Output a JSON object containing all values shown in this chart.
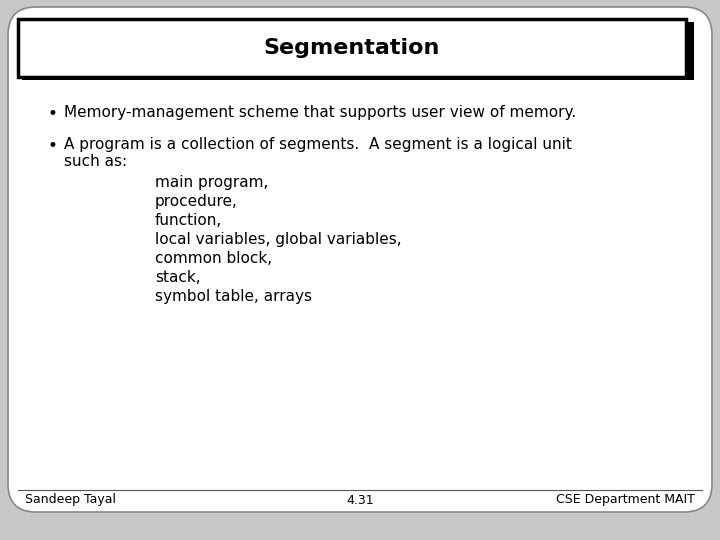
{
  "title": "Segmentation",
  "bg_color": "#c8c8c8",
  "slide_bg": "#ffffff",
  "title_box_color": "#ffffff",
  "title_box_border": "#000000",
  "title_fontsize": 16,
  "title_font_weight": "bold",
  "body_fontsize": 11,
  "footer_fontsize": 9,
  "bullet1": "Memory-management scheme that supports user view of memory.",
  "bullet2_line1": "A program is a collection of segments.  A segment is a logical unit",
  "bullet2_line2": "such as:",
  "sub_items": [
    "main program,",
    "procedure,",
    "function,",
    "local variables, global variables,",
    "common block,",
    "stack,",
    "symbol table, arrays"
  ],
  "footer_left": "Sandeep Tayal",
  "footer_center": "4.31",
  "footer_right": "CSE Department MAIT",
  "text_color": "#000000",
  "footer_color": "#000000",
  "slide_border_color": "#888888",
  "title_shadow_color": "#000000"
}
